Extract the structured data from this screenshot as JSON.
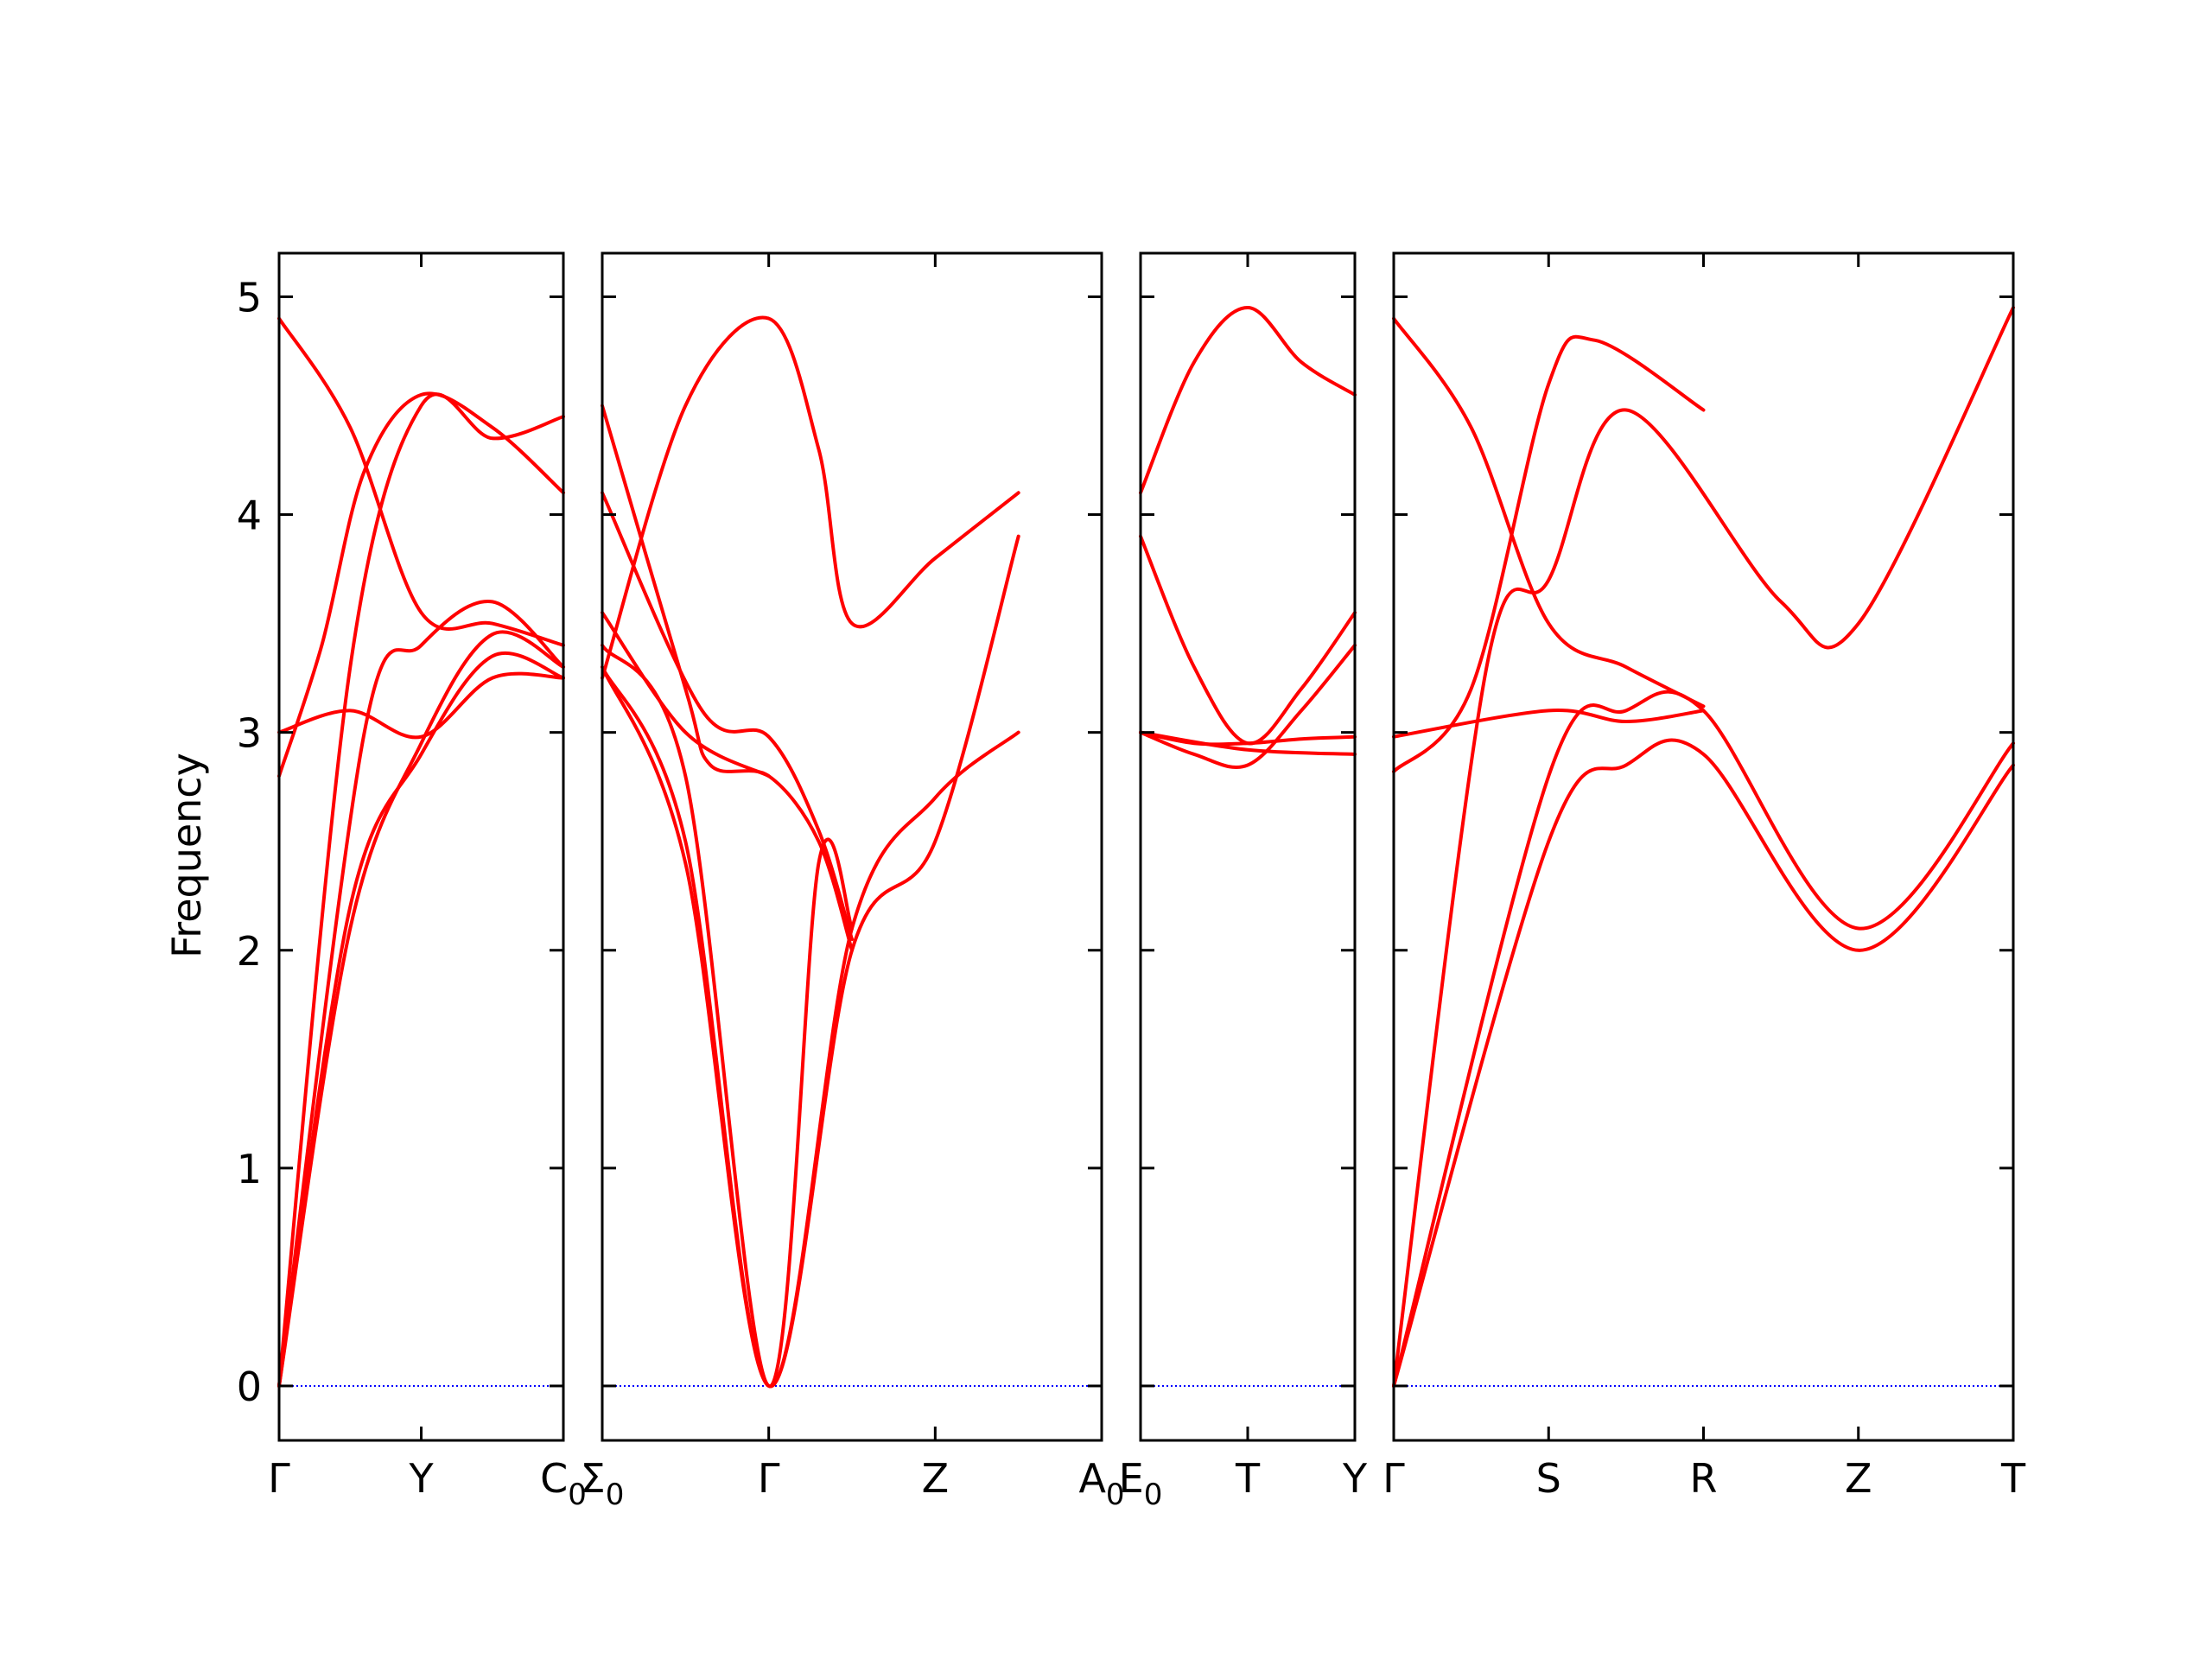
{
  "chart_data": {
    "type": "line",
    "ylabel": "Frequency",
    "ylim": [
      -0.25,
      5.2
    ],
    "yticks": [
      0,
      1,
      2,
      3,
      4,
      5
    ],
    "line_color": "#ff0000",
    "zero_line_color": "#0000ff",
    "panels": [
      {
        "xticks": [
          "Γ",
          "Y",
          "C_0"
        ],
        "series": [
          {
            "points": [
              [
                0,
                0
              ],
              [
                0.5,
                3.3
              ],
              [
                1.0,
                4.5
              ],
              [
                1.5,
                4.35
              ],
              [
                2.0,
                4.45
              ]
            ]
          },
          {
            "points": [
              [
                0,
                0
              ],
              [
                0.5,
                2.2
              ],
              [
                1.0,
                2.9
              ],
              [
                1.5,
                3.35
              ],
              [
                2.0,
                3.25
              ]
            ]
          },
          {
            "points": [
              [
                0,
                0
              ],
              [
                0.5,
                2.1
              ],
              [
                1.0,
                2.95
              ],
              [
                1.5,
                3.45
              ],
              [
                2.0,
                3.3
              ]
            ]
          },
          {
            "points": [
              [
                0,
                2.8
              ],
              [
                0.3,
                3.4
              ],
              [
                0.6,
                4.2
              ],
              [
                1.0,
                4.55
              ],
              [
                1.5,
                4.4
              ],
              [
                2.0,
                4.1
              ]
            ]
          },
          {
            "points": [
              [
                0,
                3.0
              ],
              [
                0.5,
                3.1
              ],
              [
                1.0,
                2.98
              ],
              [
                1.5,
                3.25
              ],
              [
                2.0,
                3.25
              ]
            ]
          },
          {
            "points": [
              [
                0,
                4.9
              ],
              [
                0.5,
                4.4
              ],
              [
                1.0,
                3.55
              ],
              [
                1.5,
                3.5
              ],
              [
                2.0,
                3.4
              ]
            ]
          },
          {
            "points": [
              [
                0,
                0
              ],
              [
                0.6,
                3.0
              ],
              [
                1.0,
                3.4
              ],
              [
                1.5,
                3.6
              ],
              [
                2.0,
                3.3
              ]
            ]
          }
        ]
      },
      {
        "xticks": [
          "Σ_0",
          "Γ",
          "Z",
          "A_0"
        ],
        "series": [
          {
            "points": [
              [
                0,
                3.3
              ],
              [
                0.5,
                2.5
              ],
              [
                1.0,
                0
              ],
              [
                1.5,
                2.1
              ],
              [
                2.0,
                2.7
              ],
              [
                2.5,
                3.0
              ]
            ]
          },
          {
            "points": [
              [
                0,
                3.3
              ],
              [
                0.5,
                2.4
              ],
              [
                1.0,
                0
              ],
              [
                1.5,
                2.0
              ],
              [
                2.0,
                2.5
              ],
              [
                2.5,
                3.9
              ]
            ]
          },
          {
            "points": [
              [
                0,
                3.4
              ],
              [
                0.5,
                2.8
              ],
              [
                1.0,
                0
              ],
              [
                1.3,
                2.4
              ],
              [
                1.5,
                2.1
              ]
            ]
          },
          {
            "points": [
              [
                0,
                4.5
              ],
              [
                0.5,
                3.2
              ],
              [
                0.65,
                2.85
              ],
              [
                1.0,
                2.8
              ],
              [
                1.3,
                2.5
              ],
              [
                1.5,
                2.0
              ]
            ]
          },
          {
            "points": [
              [
                0,
                4.1
              ],
              [
                0.6,
                3.1
              ],
              [
                1.0,
                2.98
              ],
              [
                1.3,
                2.55
              ],
              [
                1.5,
                2.05
              ]
            ]
          },
          {
            "points": [
              [
                0,
                3.25
              ],
              [
                0.5,
                4.5
              ],
              [
                1.0,
                4.9
              ],
              [
                1.3,
                4.3
              ],
              [
                1.5,
                3.5
              ],
              [
                2.0,
                3.8
              ],
              [
                2.5,
                4.1
              ]
            ]
          },
          {
            "points": [
              [
                0,
                3.55
              ],
              [
                0.5,
                3.0
              ],
              [
                1.0,
                2.8
              ]
            ]
          }
        ]
      },
      {
        "xticks": [
          "E_0",
          "T",
          "Y"
        ],
        "series": [
          {
            "points": [
              [
                0,
                4.1
              ],
              [
                0.5,
                4.7
              ],
              [
                1.0,
                4.95
              ],
              [
                1.5,
                4.7
              ],
              [
                2.0,
                4.55
              ]
            ]
          },
          {
            "points": [
              [
                0,
                3.9
              ],
              [
                0.5,
                3.3
              ],
              [
                1.0,
                2.95
              ],
              [
                1.5,
                3.2
              ],
              [
                2.0,
                3.55
              ]
            ]
          },
          {
            "points": [
              [
                0,
                3.0
              ],
              [
                0.5,
                2.9
              ],
              [
                1.0,
                2.85
              ],
              [
                1.5,
                3.1
              ],
              [
                2.0,
                3.4
              ]
            ]
          },
          {
            "points": [
              [
                0,
                3.0
              ],
              [
                0.5,
                2.95
              ],
              [
                1.0,
                2.95
              ],
              [
                1.5,
                2.97
              ],
              [
                2.0,
                2.98
              ]
            ]
          },
          {
            "points": [
              [
                0,
                3.0
              ],
              [
                1.0,
                2.92
              ],
              [
                2.0,
                2.9
              ]
            ]
          }
        ]
      },
      {
        "xticks": [
          "Γ",
          "S",
          "R",
          "Z",
          "T"
        ],
        "series": [
          {
            "points": [
              [
                0,
                0
              ],
              [
                1.0,
                2.5
              ],
              [
                1.5,
                2.85
              ],
              [
                2.0,
                2.9
              ],
              [
                3.0,
                2.0
              ],
              [
                4.0,
                2.85
              ]
            ]
          },
          {
            "points": [
              [
                0,
                0
              ],
              [
                1.0,
                2.8
              ],
              [
                1.5,
                3.1
              ],
              [
                2.0,
                3.1
              ],
              [
                3.0,
                2.1
              ],
              [
                4.0,
                2.95
              ]
            ]
          },
          {
            "points": [
              [
                0,
                0
              ],
              [
                0.6,
                3.3
              ],
              [
                1.0,
                3.7
              ],
              [
                1.5,
                4.48
              ],
              [
                2.5,
                3.6
              ],
              [
                3.0,
                3.5
              ],
              [
                4.0,
                4.95
              ]
            ]
          },
          {
            "points": [
              [
                0,
                2.82
              ],
              [
                0.5,
                3.2
              ],
              [
                1.0,
                4.6
              ],
              [
                1.3,
                4.8
              ],
              [
                2.0,
                4.48
              ]
            ]
          },
          {
            "points": [
              [
                0,
                2.98
              ],
              [
                1.0,
                3.1
              ],
              [
                1.5,
                3.05
              ],
              [
                2.0,
                3.1
              ]
            ]
          },
          {
            "points": [
              [
                0,
                4.9
              ],
              [
                0.5,
                4.4
              ],
              [
                1.0,
                3.5
              ],
              [
                1.5,
                3.3
              ],
              [
                2.0,
                3.12
              ]
            ]
          }
        ]
      }
    ]
  }
}
